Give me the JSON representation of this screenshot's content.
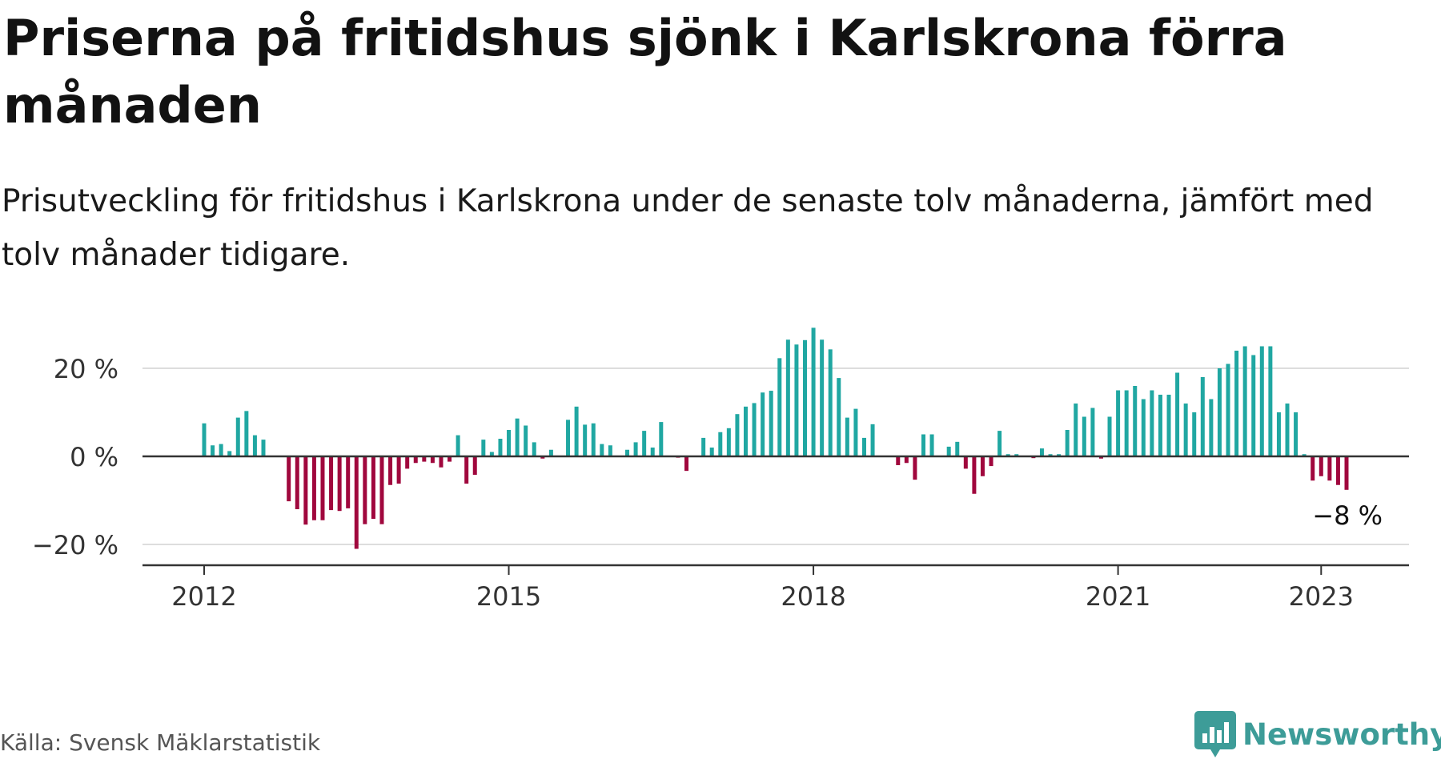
{
  "title": "Priserna på fritidshus sjönk i Karlskrona förra månaden",
  "subtitle": "Prisutveckling för fritidshus i Karlskrona under de senaste tolv månaderna, jämfört med tolv månader tidigare.",
  "source": "Källa: Svensk Mäklarstatistik",
  "brand": "Newsworthy",
  "colors": {
    "positive": "#20a7a2",
    "negative": "#a0073d",
    "grid": "#dddddd",
    "axis": "#333333"
  },
  "chart_data": {
    "type": "bar",
    "x_start": "2012-01",
    "x_end": "2023-01",
    "x_ticks": [
      "2012",
      "2015",
      "2018",
      "2021",
      "2023"
    ],
    "y_ticks": [
      "20 %",
      "0 %",
      "−20 %"
    ],
    "ylim": [
      -25,
      30
    ],
    "grid": true,
    "values": [
      7.5,
      2.5,
      2.8,
      1.2,
      8.8,
      10.3,
      4.8,
      3.8,
      0,
      0,
      -10.2,
      -12,
      -15.5,
      -14.5,
      -14.5,
      -12.2,
      -12.4,
      -11.8,
      -21,
      -15.4,
      -14.2,
      -15.4,
      -6.5,
      -6.2,
      -2.8,
      -1.5,
      -1.2,
      -1.5,
      -2.5,
      -1.2,
      4.8,
      -6.2,
      -4.2,
      3.8,
      1,
      4,
      6,
      8.6,
      7,
      3.2,
      -0.5,
      1.5,
      0,
      8.3,
      11.3,
      7.2,
      7.5,
      2.8,
      2.5,
      0,
      1.5,
      3.2,
      5.8,
      2,
      7.8,
      0,
      -0.3,
      -3.3,
      0,
      4.2,
      2,
      5.5,
      6.4,
      9.6,
      11.3,
      12.1,
      14.5,
      14.9,
      22.3,
      26.5,
      25.4,
      26.4,
      29.2,
      26.5,
      24.3,
      17.8,
      8.8,
      10.8,
      4.2,
      7.3,
      0,
      0,
      -2,
      -1.5,
      -5.3,
      5,
      5,
      0,
      2.2,
      3.3,
      -2.8,
      -8.5,
      -4.5,
      -2.2,
      5.8,
      0.5,
      0.5,
      0,
      -0.4,
      1.8,
      0.5,
      0.5,
      6,
      12,
      9,
      11,
      -0.5,
      9,
      15,
      15,
      16,
      13,
      15,
      14,
      14,
      19,
      12,
      10,
      18,
      13,
      20,
      21,
      24,
      25,
      23,
      25,
      25,
      10,
      12,
      10,
      0.5,
      -5.5,
      -4.5,
      -5.5,
      -6.5,
      -7.6
    ],
    "end_label": "−8 %"
  }
}
